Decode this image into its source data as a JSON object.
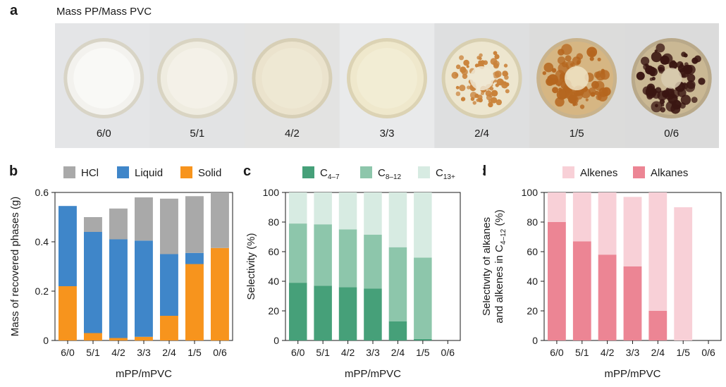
{
  "panel_a": {
    "letter": "a",
    "caption": "Mass PP/Mass PVC",
    "samples": [
      "6/0",
      "5/1",
      "4/2",
      "3/3",
      "2/4",
      "1/5",
      "0/6"
    ]
  },
  "chart_data": [
    {
      "panel": "b",
      "type": "bar",
      "stacked": true,
      "categories": [
        "6/0",
        "5/1",
        "4/2",
        "3/3",
        "2/4",
        "1/5",
        "0/6"
      ],
      "series": [
        {
          "name": "Solid",
          "color": "#f7941d",
          "values": [
            0.22,
            0.03,
            0.01,
            0.015,
            0.1,
            0.31,
            0.375
          ]
        },
        {
          "name": "Liquid",
          "color": "#3f86c9",
          "values": [
            0.325,
            0.41,
            0.4,
            0.39,
            0.25,
            0.045,
            0.0
          ]
        },
        {
          "name": "HCl",
          "color": "#a9a9a9",
          "values": [
            0.0,
            0.06,
            0.125,
            0.175,
            0.225,
            0.23,
            0.225
          ]
        }
      ],
      "legend_order": [
        "HCl",
        "Liquid",
        "Solid"
      ],
      "xlabel": "mPP/mPVC",
      "ylabel": "Mass of recovered phases (g)",
      "ylim": [
        0,
        0.6
      ],
      "yticks": [
        "0",
        "0.2",
        "0.4",
        "0.6"
      ]
    },
    {
      "panel": "c",
      "type": "bar",
      "stacked": true,
      "categories": [
        "6/0",
        "5/1",
        "4/2",
        "3/3",
        "2/4",
        "1/5",
        "0/6"
      ],
      "series": [
        {
          "name": "C4–7",
          "base": "C",
          "sub": "4–7",
          "color": "#46a079",
          "values": [
            39,
            37,
            36,
            35,
            13,
            1,
            0
          ]
        },
        {
          "name": "C8–12",
          "base": "C",
          "sub": "8–12",
          "color": "#8dc6ab",
          "values": [
            40,
            41.5,
            39,
            36.5,
            50,
            55,
            0
          ]
        },
        {
          "name": "C13+",
          "base": "C",
          "sub": "13+",
          "color": "#d7ebe2",
          "values": [
            21,
            21.5,
            25,
            28.5,
            37,
            44,
            0
          ]
        }
      ],
      "legend_order": [
        "C4–7",
        "C8–12",
        "C13+"
      ],
      "xlabel": "mPP/mPVC",
      "ylabel": "Selectivity (%)",
      "ylim": [
        0,
        100
      ],
      "yticks": [
        "0",
        "20",
        "40",
        "60",
        "80",
        "100"
      ]
    },
    {
      "panel": "d",
      "type": "bar",
      "stacked": true,
      "categories": [
        "6/0",
        "5/1",
        "4/2",
        "3/3",
        "2/4",
        "1/5",
        "0/6"
      ],
      "series": [
        {
          "name": "Alkanes",
          "color": "#ec8594",
          "values": [
            80,
            67,
            58,
            50,
            20,
            0,
            0
          ]
        },
        {
          "name": "Alkenes",
          "color": "#f8d0d7",
          "values": [
            20,
            33,
            42,
            47,
            80,
            90,
            0
          ]
        }
      ],
      "legend_order": [
        "Alkenes",
        "Alkanes"
      ],
      "xlabel": "mPP/mPVC",
      "ylabel_line1": "Selectivity of alkanes",
      "ylabel_line2_prefix": "and alkenes in C",
      "ylabel_line2_sub": "4–12",
      "ylabel_line2_suffix": " (%)",
      "ylim": [
        0,
        100
      ],
      "yticks": [
        "0",
        "20",
        "40",
        "60",
        "80",
        "100"
      ]
    }
  ]
}
